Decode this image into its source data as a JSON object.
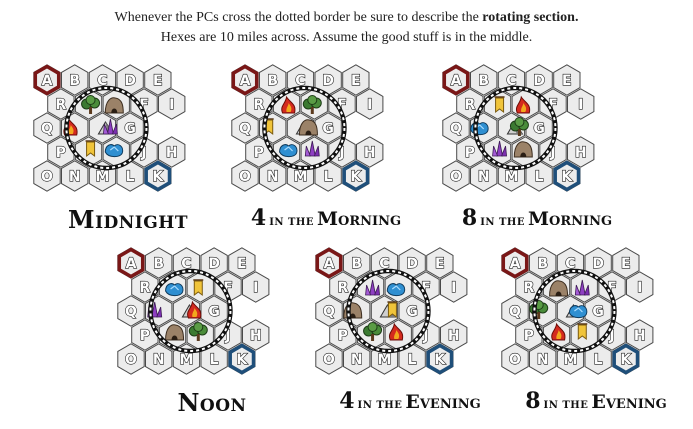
{
  "intro": {
    "line1_before": "Whenever the PCs cross the dotted border be sure to describe the ",
    "line1_bold": "rotating section.",
    "line2": "Hexes are 10 miles across. Assume the good stuff is in the middle."
  },
  "colors": {
    "marker_red": "#7a1717",
    "marker_blue": "#1f4f7a",
    "hex_fill": "#ececec",
    "hex_stroke": "#4a4a4a"
  },
  "legend_icons": [
    "flame-icon",
    "tree-icon",
    "cave-icon",
    "mountain-icon",
    "crystal-icon",
    "crystal-blue-icon",
    "banner-icon"
  ],
  "panels": [
    {
      "id": "midnight",
      "labels": {
        "a": "A",
        "b": "B",
        "c": "C",
        "d": "D",
        "e": "E",
        "r": "R",
        "f": "F",
        "i": "I",
        "q": "Q",
        "g": "G",
        "p": "P",
        "j": "J",
        "h": "H",
        "o": "O",
        "n": "N",
        "m": "M",
        "l": "L",
        "k": "K"
      },
      "caption": {
        "number": "",
        "small": "",
        "word": "Midnight"
      },
      "icons": [
        "tree-icon",
        "cave-icon",
        "flame-icon",
        "mountain-icon",
        "crystal-icon",
        "banner-icon",
        "crystal-blue-icon"
      ]
    },
    {
      "id": "4am",
      "labels": {
        "a": "A",
        "b": "B",
        "c": "C",
        "d": "D",
        "e": "E",
        "r": "R",
        "f": "F",
        "i": "I",
        "q": "Q",
        "g": "G",
        "p": "P",
        "j": "J",
        "h": "H",
        "o": "O",
        "n": "N",
        "m": "M",
        "l": "L",
        "k": "K"
      },
      "caption": {
        "number": "4",
        "small": "IN THE",
        "word": "Morning"
      },
      "icons": [
        "flame-icon",
        "tree-icon",
        "banner-icon",
        "mountain-icon",
        "cave-icon",
        "crystal-blue-icon",
        "crystal-icon"
      ]
    },
    {
      "id": "8am",
      "labels": {
        "a": "A",
        "b": "B",
        "c": "C",
        "d": "D",
        "e": "E",
        "r": "R",
        "f": "F",
        "i": "I",
        "q": "Q",
        "g": "G",
        "p": "P",
        "j": "J",
        "h": "H",
        "o": "O",
        "n": "N",
        "m": "M",
        "l": "L",
        "k": "K"
      },
      "caption": {
        "number": "8",
        "small": "IN THE",
        "word": "Morning"
      },
      "icons": [
        "banner-icon",
        "flame-icon",
        "crystal-blue-icon",
        "mountain-icon",
        "tree-icon",
        "crystal-icon",
        "cave-icon"
      ]
    },
    {
      "id": "noon",
      "labels": {
        "a": "A",
        "b": "B",
        "c": "C",
        "d": "D",
        "e": "E",
        "r": "R",
        "f": "F",
        "i": "I",
        "q": "Q",
        "g": "G",
        "p": "P",
        "j": "J",
        "h": "H",
        "o": "O",
        "n": "N",
        "m": "M",
        "l": "L",
        "k": "K"
      },
      "caption": {
        "number": "",
        "small": "",
        "word": "Noon"
      },
      "icons": [
        "crystal-blue-icon",
        "banner-icon",
        "crystal-icon",
        "mountain-icon",
        "flame-icon",
        "cave-icon",
        "tree-icon"
      ]
    },
    {
      "id": "4pm",
      "labels": {
        "a": "A",
        "b": "B",
        "c": "C",
        "d": "D",
        "e": "E",
        "r": "R",
        "f": "F",
        "i": "I",
        "q": "Q",
        "g": "G",
        "p": "P",
        "j": "J",
        "h": "H",
        "o": "O",
        "n": "N",
        "m": "M",
        "l": "L",
        "k": "K"
      },
      "caption": {
        "number": "4",
        "small": "IN THE",
        "word": "Evening"
      },
      "icons": [
        "crystal-icon",
        "crystal-blue-icon",
        "cave-icon",
        "mountain-icon",
        "banner-icon",
        "tree-icon",
        "flame-icon"
      ]
    },
    {
      "id": "8pm",
      "labels": {
        "a": "A",
        "b": "B",
        "c": "C",
        "d": "D",
        "e": "E",
        "r": "R",
        "f": "F",
        "i": "I",
        "q": "Q",
        "g": "G",
        "p": "P",
        "j": "J",
        "h": "H",
        "o": "O",
        "n": "N",
        "m": "M",
        "l": "L",
        "k": "K"
      },
      "caption": {
        "number": "8",
        "small": "IN THE",
        "word": "Evening"
      },
      "icons": [
        "cave-icon",
        "crystal-icon",
        "tree-icon",
        "mountain-icon",
        "crystal-blue-icon",
        "flame-icon",
        "banner-icon"
      ]
    }
  ]
}
